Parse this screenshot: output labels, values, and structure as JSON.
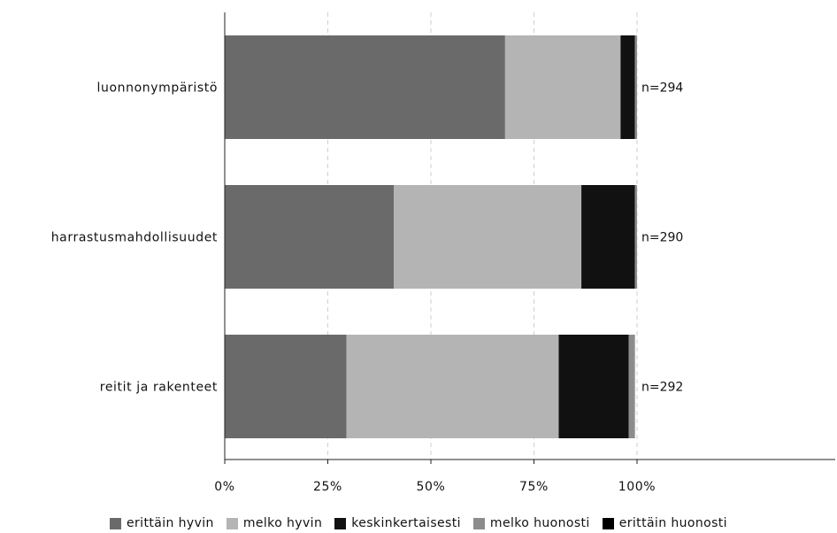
{
  "chart_data": {
    "type": "bar",
    "orientation": "horizontal",
    "stacked": true,
    "percent": true,
    "categories": [
      "luonnonympäristö",
      "harrastusmahdollisuudet",
      "reitit ja rakenteet"
    ],
    "n_labels": [
      "n=294",
      "n=290",
      "n=292"
    ],
    "series": [
      {
        "name": "erittäin hyvin",
        "color": "#6a6a6a",
        "values": [
          68,
          41,
          29.5
        ]
      },
      {
        "name": "melko hyvin",
        "color": "#b4b4b4",
        "values": [
          28,
          45.5,
          51.5
        ]
      },
      {
        "name": "keskinkertaisesti",
        "color": "#111111",
        "values": [
          3.5,
          13,
          17
        ]
      },
      {
        "name": "melko huonosti",
        "color": "#8c8c8c",
        "values": [
          0.5,
          0.5,
          1.5
        ]
      },
      {
        "name": "erittäin huonosti",
        "color": "#000000",
        "values": [
          0,
          0,
          0
        ]
      }
    ],
    "x_ticks": [
      "0%",
      "25%",
      "50%",
      "75%",
      "100%"
    ],
    "xlim": [
      0,
      100
    ],
    "grid": "vertical dashed",
    "legend_position": "bottom"
  }
}
